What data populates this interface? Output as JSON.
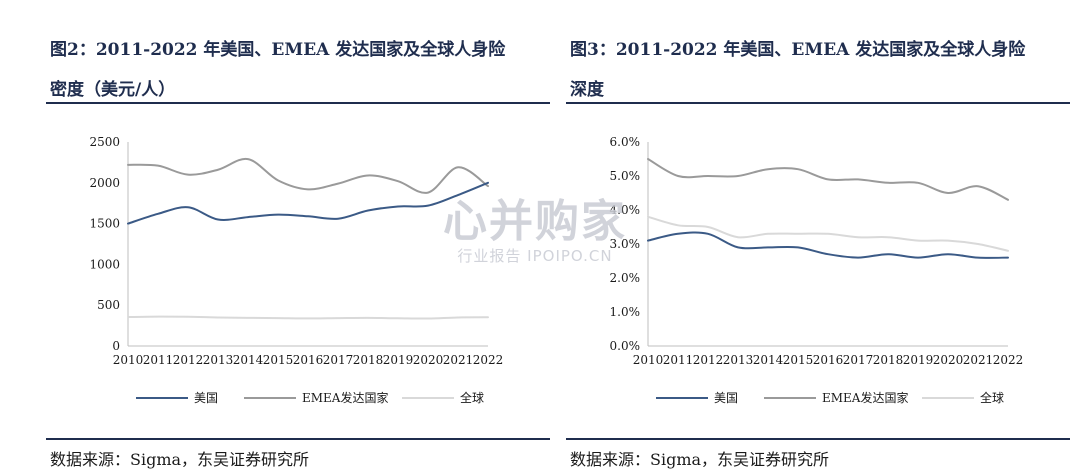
{
  "charts": [
    {
      "fig_title_line1": "图2：2011-2022 年美国、EMEA 发达国家及全球人身险",
      "fig_title_line2": "密度（美元/人）",
      "source": "数据来源：Sigma，东吴证券研究所",
      "chart_data": {
        "type": "line",
        "categories": [
          "2010",
          "2011",
          "2012",
          "2013",
          "2014",
          "2015",
          "2016",
          "2017",
          "2018",
          "2019",
          "2020",
          "2021",
          "2022"
        ],
        "yticks": [
          "0",
          "500",
          "1000",
          "1500",
          "2000",
          "2500"
        ],
        "ylim": [
          0,
          2500
        ],
        "grid": false,
        "legend_position": "bottom",
        "series": [
          {
            "name": "美国",
            "color": "#3b5a86",
            "values": [
              1500,
              1620,
              1700,
              1550,
              1580,
              1610,
              1590,
              1560,
              1660,
              1710,
              1720,
              1850,
              2000
            ]
          },
          {
            "name": "EMEA发达国家",
            "color": "#9a9a9a",
            "values": [
              2220,
              2210,
              2100,
              2160,
              2290,
              2030,
              1920,
              1990,
              2090,
              2020,
              1880,
              2190,
              1960
            ]
          },
          {
            "name": "全球",
            "color": "#d9d9d9",
            "values": [
              355,
              360,
              358,
              350,
              345,
              342,
              338,
              342,
              345,
              340,
              337,
              350,
              352
            ]
          }
        ]
      }
    },
    {
      "fig_title_line1": "图3：2011-2022 年美国、EMEA 发达国家及全球人身险",
      "fig_title_line2": "深度",
      "source": "数据来源：Sigma，东吴证券研究所",
      "chart_data": {
        "type": "line",
        "categories": [
          "2010",
          "2011",
          "2012",
          "2013",
          "2014",
          "2015",
          "2016",
          "2017",
          "2018",
          "2019",
          "2020",
          "2021",
          "2022"
        ],
        "yticks": [
          "0.0%",
          "1.0%",
          "2.0%",
          "3.0%",
          "4.0%",
          "5.0%",
          "6.0%"
        ],
        "ylim": [
          0,
          6.0
        ],
        "grid": false,
        "legend_position": "bottom",
        "series": [
          {
            "name": "美国",
            "color": "#3b5a86",
            "values": [
              3.1,
              3.3,
              3.3,
              2.9,
              2.9,
              2.9,
              2.7,
              2.6,
              2.7,
              2.6,
              2.7,
              2.6,
              2.6
            ]
          },
          {
            "name": "EMEA发达国家",
            "color": "#9a9a9a",
            "values": [
              5.5,
              5.0,
              5.0,
              5.0,
              5.2,
              5.2,
              4.9,
              4.9,
              4.8,
              4.8,
              4.5,
              4.7,
              4.3
            ]
          },
          {
            "name": "全球",
            "color": "#d9d9d9",
            "values": [
              3.8,
              3.55,
              3.5,
              3.2,
              3.3,
              3.3,
              3.3,
              3.2,
              3.2,
              3.1,
              3.1,
              3.0,
              2.8
            ]
          }
        ]
      }
    }
  ],
  "watermark": {
    "main": "心并购家",
    "sub": "行业报告 IPOIPO.CN"
  }
}
